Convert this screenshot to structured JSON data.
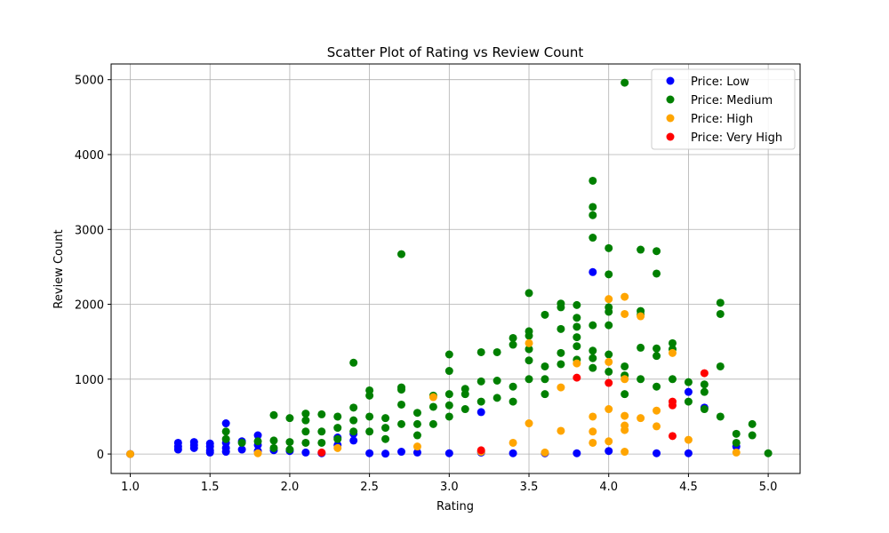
{
  "chart_data": {
    "type": "scatter",
    "title": "Scatter Plot of Rating vs Review Count",
    "xlabel": "Rating",
    "ylabel": "Review Count",
    "xlim": [
      0.88,
      5.2
    ],
    "ylim": [
      -260,
      5210
    ],
    "xticks": [
      1.0,
      1.5,
      2.0,
      2.5,
      3.0,
      3.5,
      4.0,
      4.5,
      5.0
    ],
    "xtick_labels": [
      "1.0",
      "1.5",
      "2.0",
      "2.5",
      "3.0",
      "3.5",
      "4.0",
      "4.5",
      "5.0"
    ],
    "yticks": [
      0,
      1000,
      2000,
      3000,
      4000,
      5000
    ],
    "ytick_labels": [
      "0",
      "1000",
      "2000",
      "3000",
      "4000",
      "5000"
    ],
    "grid": true,
    "legend_position": "top-right",
    "series": [
      {
        "name": "Price: Low",
        "color": "#0000ff",
        "points": [
          [
            1.0,
            0
          ],
          [
            1.3,
            60
          ],
          [
            1.3,
            150
          ],
          [
            1.3,
            100
          ],
          [
            1.4,
            80
          ],
          [
            1.4,
            160
          ],
          [
            1.4,
            120
          ],
          [
            1.5,
            50
          ],
          [
            1.5,
            140
          ],
          [
            1.5,
            100
          ],
          [
            1.5,
            20
          ],
          [
            1.6,
            410
          ],
          [
            1.6,
            150
          ],
          [
            1.6,
            80
          ],
          [
            1.6,
            30
          ],
          [
            1.7,
            170
          ],
          [
            1.7,
            60
          ],
          [
            1.8,
            250
          ],
          [
            1.8,
            120
          ],
          [
            1.8,
            40
          ],
          [
            1.9,
            50
          ],
          [
            2.0,
            40
          ],
          [
            2.1,
            20
          ],
          [
            2.2,
            10
          ],
          [
            2.3,
            220
          ],
          [
            2.3,
            120
          ],
          [
            2.4,
            270
          ],
          [
            2.4,
            180
          ],
          [
            2.5,
            10
          ],
          [
            2.6,
            5
          ],
          [
            2.7,
            30
          ],
          [
            2.8,
            20
          ],
          [
            3.0,
            10
          ],
          [
            3.2,
            560
          ],
          [
            3.2,
            20
          ],
          [
            3.4,
            10
          ],
          [
            3.6,
            10
          ],
          [
            3.8,
            10
          ],
          [
            3.9,
            2430
          ],
          [
            4.0,
            40
          ],
          [
            4.3,
            10
          ],
          [
            4.5,
            830
          ],
          [
            4.5,
            10
          ],
          [
            4.6,
            620
          ],
          [
            4.8,
            100
          ]
        ]
      },
      {
        "name": "Price: Medium",
        "color": "#008000",
        "points": [
          [
            1.6,
            300
          ],
          [
            1.6,
            200
          ],
          [
            1.7,
            150
          ],
          [
            1.8,
            170
          ],
          [
            1.9,
            520
          ],
          [
            1.9,
            180
          ],
          [
            1.9,
            80
          ],
          [
            2.0,
            480
          ],
          [
            2.0,
            160
          ],
          [
            2.0,
            60
          ],
          [
            2.1,
            540
          ],
          [
            2.1,
            450
          ],
          [
            2.1,
            300
          ],
          [
            2.1,
            150
          ],
          [
            2.2,
            530
          ],
          [
            2.2,
            300
          ],
          [
            2.2,
            150
          ],
          [
            2.3,
            500
          ],
          [
            2.3,
            350
          ],
          [
            2.3,
            200
          ],
          [
            2.4,
            1220
          ],
          [
            2.4,
            620
          ],
          [
            2.4,
            450
          ],
          [
            2.4,
            300
          ],
          [
            2.5,
            850
          ],
          [
            2.5,
            780
          ],
          [
            2.5,
            500
          ],
          [
            2.5,
            300
          ],
          [
            2.6,
            480
          ],
          [
            2.6,
            350
          ],
          [
            2.6,
            200
          ],
          [
            2.7,
            2670
          ],
          [
            2.7,
            890
          ],
          [
            2.7,
            860
          ],
          [
            2.7,
            660
          ],
          [
            2.7,
            400
          ],
          [
            2.8,
            550
          ],
          [
            2.8,
            400
          ],
          [
            2.8,
            250
          ],
          [
            2.9,
            780
          ],
          [
            2.9,
            630
          ],
          [
            2.9,
            400
          ],
          [
            3.0,
            1330
          ],
          [
            3.0,
            1110
          ],
          [
            3.0,
            800
          ],
          [
            3.0,
            650
          ],
          [
            3.0,
            500
          ],
          [
            3.1,
            870
          ],
          [
            3.1,
            800
          ],
          [
            3.1,
            600
          ],
          [
            3.2,
            1360
          ],
          [
            3.2,
            970
          ],
          [
            3.2,
            700
          ],
          [
            3.3,
            1360
          ],
          [
            3.3,
            980
          ],
          [
            3.3,
            750
          ],
          [
            3.4,
            1550
          ],
          [
            3.4,
            1460
          ],
          [
            3.4,
            900
          ],
          [
            3.4,
            700
          ],
          [
            3.5,
            2150
          ],
          [
            3.5,
            1640
          ],
          [
            3.5,
            1580
          ],
          [
            3.5,
            1400
          ],
          [
            3.5,
            1250
          ],
          [
            3.5,
            1000
          ],
          [
            3.6,
            1860
          ],
          [
            3.6,
            1170
          ],
          [
            3.6,
            1000
          ],
          [
            3.6,
            800
          ],
          [
            3.7,
            2010
          ],
          [
            3.7,
            1960
          ],
          [
            3.7,
            1670
          ],
          [
            3.7,
            1350
          ],
          [
            3.7,
            1200
          ],
          [
            3.8,
            1990
          ],
          [
            3.8,
            1820
          ],
          [
            3.8,
            1700
          ],
          [
            3.8,
            1560
          ],
          [
            3.8,
            1440
          ],
          [
            3.8,
            1260
          ],
          [
            3.9,
            3650
          ],
          [
            3.9,
            3300
          ],
          [
            3.9,
            3190
          ],
          [
            3.9,
            2890
          ],
          [
            3.9,
            1720
          ],
          [
            3.9,
            1380
          ],
          [
            3.9,
            1280
          ],
          [
            3.9,
            1150
          ],
          [
            4.0,
            2750
          ],
          [
            4.0,
            2400
          ],
          [
            4.0,
            1960
          ],
          [
            4.0,
            1900
          ],
          [
            4.0,
            1720
          ],
          [
            4.0,
            1330
          ],
          [
            4.0,
            1100
          ],
          [
            4.1,
            4960
          ],
          [
            4.1,
            1170
          ],
          [
            4.1,
            1050
          ],
          [
            4.1,
            800
          ],
          [
            4.2,
            2730
          ],
          [
            4.2,
            1910
          ],
          [
            4.2,
            1860
          ],
          [
            4.2,
            1420
          ],
          [
            4.2,
            1000
          ],
          [
            4.3,
            2710
          ],
          [
            4.3,
            2410
          ],
          [
            4.3,
            1410
          ],
          [
            4.3,
            1310
          ],
          [
            4.3,
            900
          ],
          [
            4.4,
            1480
          ],
          [
            4.4,
            1400
          ],
          [
            4.4,
            1000
          ],
          [
            4.5,
            960
          ],
          [
            4.5,
            700
          ],
          [
            4.6,
            930
          ],
          [
            4.6,
            830
          ],
          [
            4.6,
            600
          ],
          [
            4.7,
            2020
          ],
          [
            4.7,
            1870
          ],
          [
            4.7,
            1170
          ],
          [
            4.7,
            500
          ],
          [
            4.8,
            270
          ],
          [
            4.8,
            150
          ],
          [
            4.9,
            400
          ],
          [
            4.9,
            250
          ],
          [
            5.0,
            10
          ]
        ]
      },
      {
        "name": "Price: High",
        "color": "#ffa500",
        "points": [
          [
            1.0,
            0
          ],
          [
            1.8,
            10
          ],
          [
            2.3,
            80
          ],
          [
            2.8,
            100
          ],
          [
            2.9,
            760
          ],
          [
            3.2,
            30
          ],
          [
            3.4,
            150
          ],
          [
            3.5,
            1480
          ],
          [
            3.5,
            410
          ],
          [
            3.6,
            20
          ],
          [
            3.7,
            890
          ],
          [
            3.7,
            310
          ],
          [
            3.8,
            1210
          ],
          [
            3.9,
            500
          ],
          [
            3.9,
            300
          ],
          [
            3.9,
            150
          ],
          [
            4.0,
            2070
          ],
          [
            4.0,
            1230
          ],
          [
            4.0,
            600
          ],
          [
            4.0,
            170
          ],
          [
            4.1,
            2100
          ],
          [
            4.1,
            1870
          ],
          [
            4.1,
            1000
          ],
          [
            4.1,
            510
          ],
          [
            4.1,
            380
          ],
          [
            4.1,
            320
          ],
          [
            4.1,
            30
          ],
          [
            4.2,
            1840
          ],
          [
            4.2,
            480
          ],
          [
            4.3,
            580
          ],
          [
            4.3,
            370
          ],
          [
            4.4,
            1350
          ],
          [
            4.5,
            190
          ],
          [
            4.8,
            20
          ]
        ]
      },
      {
        "name": "Price: Very High",
        "color": "#ff0000",
        "points": [
          [
            2.2,
            20
          ],
          [
            3.2,
            50
          ],
          [
            3.8,
            1020
          ],
          [
            4.0,
            950
          ],
          [
            4.4,
            700
          ],
          [
            4.4,
            650
          ],
          [
            4.4,
            240
          ],
          [
            4.6,
            1080
          ]
        ]
      }
    ]
  }
}
